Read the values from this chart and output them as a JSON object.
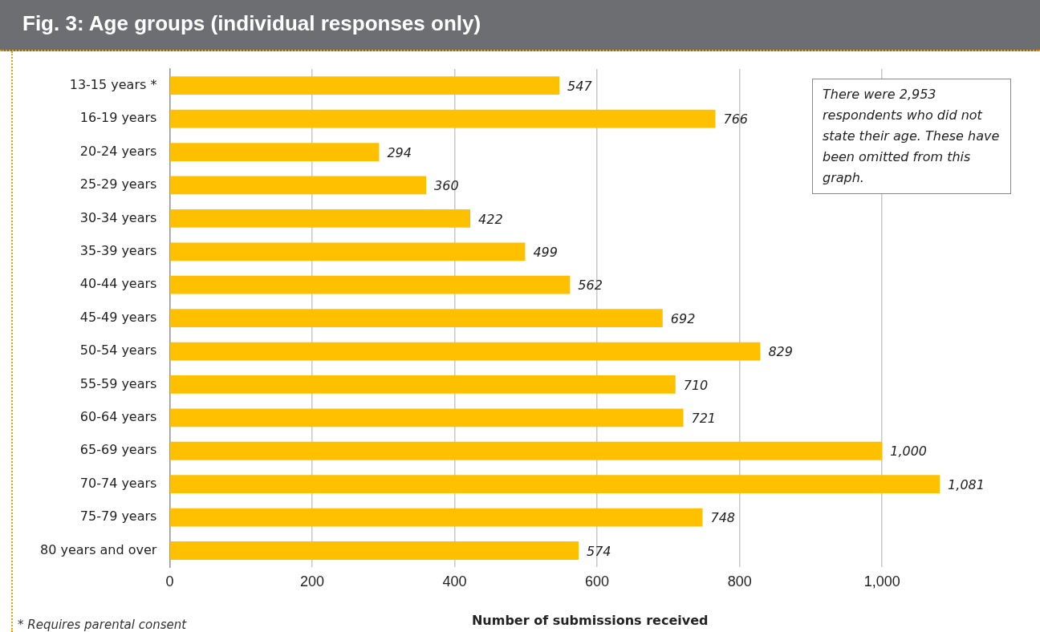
{
  "chart_data": {
    "type": "bar",
    "orientation": "horizontal",
    "title": "Fig. 3: Age groups (individual responses only)",
    "xlabel": "Number of submissions received",
    "categories": [
      "13-15 years *",
      "16-19 years",
      "20-24 years",
      "25-29 years",
      "30-34 years",
      "35-39 years",
      "40-44 years",
      "45-49 years",
      "50-54 years",
      "55-59 years",
      "60-64 years",
      "65-69 years",
      "70-74 years",
      "75-79 years",
      "80 years and over"
    ],
    "values": [
      547,
      766,
      294,
      360,
      422,
      499,
      562,
      692,
      829,
      710,
      721,
      1000,
      1081,
      748,
      574
    ],
    "value_labels": [
      "547",
      "766",
      "294",
      "360",
      "422",
      "499",
      "562",
      "692",
      "829",
      "710",
      "721",
      "1,000",
      "1,081",
      "748",
      "574"
    ],
    "color": "#ffc000",
    "xlim": [
      0,
      1180
    ],
    "xticks": [
      0,
      200,
      400,
      600,
      800,
      {
        "value": 1000,
        "label": "1,000"
      }
    ],
    "grid": "x",
    "annotations": [
      "There were 2,953 respondents who did not state their age. These have been omitted from this graph.",
      "* Requires parental consent"
    ]
  }
}
